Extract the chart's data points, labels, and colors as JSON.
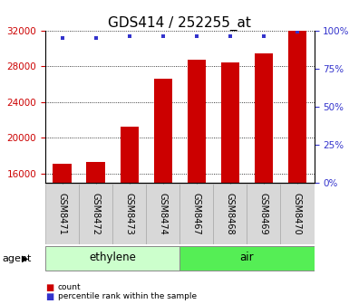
{
  "title": "GDS414 / 252255_at",
  "categories": [
    "GSM8471",
    "GSM8472",
    "GSM8473",
    "GSM8474",
    "GSM8467",
    "GSM8468",
    "GSM8469",
    "GSM8470"
  ],
  "counts": [
    17100,
    17300,
    21200,
    26600,
    28700,
    28400,
    29400,
    32000
  ],
  "percentiles": [
    95,
    95,
    96,
    96,
    96,
    96,
    96,
    99
  ],
  "groups": [
    {
      "label": "ethylene",
      "start": 0,
      "end": 4,
      "color": "#ccffcc"
    },
    {
      "label": "air",
      "start": 4,
      "end": 8,
      "color": "#55ee55"
    }
  ],
  "ylim_left": [
    15000,
    32000
  ],
  "yticks_left": [
    16000,
    20000,
    24000,
    28000,
    32000
  ],
  "ylim_right": [
    0,
    100
  ],
  "yticks_right": [
    0,
    25,
    50,
    75,
    100
  ],
  "bar_color": "#cc0000",
  "percentile_color": "#3333cc",
  "background_color": "#ffffff",
  "left_tick_color": "#cc0000",
  "right_tick_color": "#3333cc",
  "title_fontsize": 11,
  "tick_fontsize": 7.5,
  "label_fontsize": 8,
  "bar_width": 0.55
}
